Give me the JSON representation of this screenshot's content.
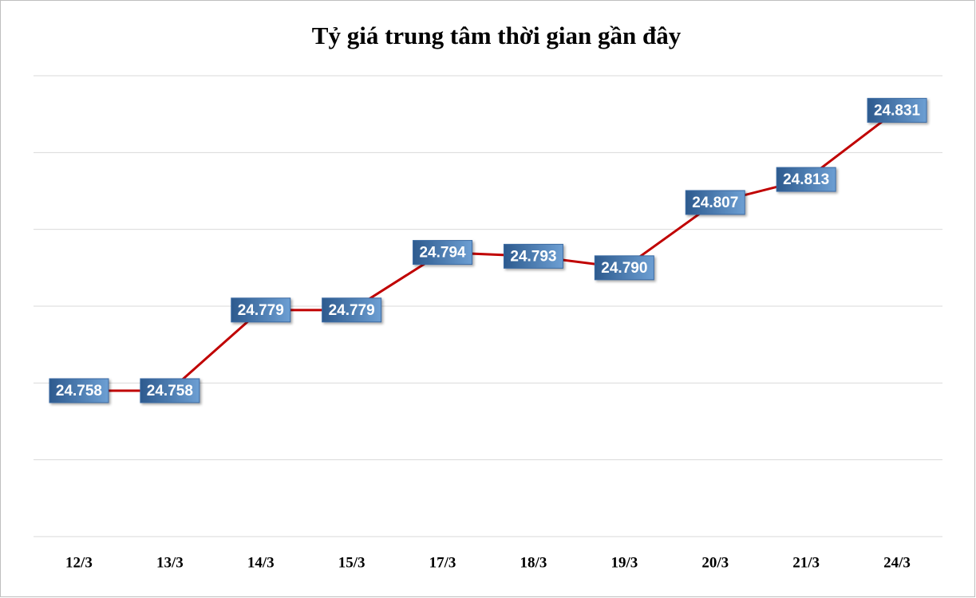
{
  "chart_data": {
    "type": "line",
    "title": "Tỷ giá trung tâm thời gian gần đây",
    "categories": [
      "12/3",
      "13/3",
      "14/3",
      "15/3",
      "17/3",
      "18/3",
      "19/3",
      "20/3",
      "21/3",
      "24/3"
    ],
    "values": [
      24758,
      24758,
      24779,
      24779,
      24794,
      24793,
      24790,
      24807,
      24813,
      24831
    ],
    "value_labels": [
      "24.758",
      "24.758",
      "24.779",
      "24.779",
      "24.794",
      "24.793",
      "24.790",
      "24.807",
      "24.813",
      "24.831"
    ],
    "color": "#c00000",
    "label_color": "#3a6aa3",
    "ylim": [
      24720,
      24840
    ],
    "yticks": [
      24720,
      24740,
      24760,
      24780,
      24800,
      24820,
      24840
    ],
    "grid": true
  }
}
